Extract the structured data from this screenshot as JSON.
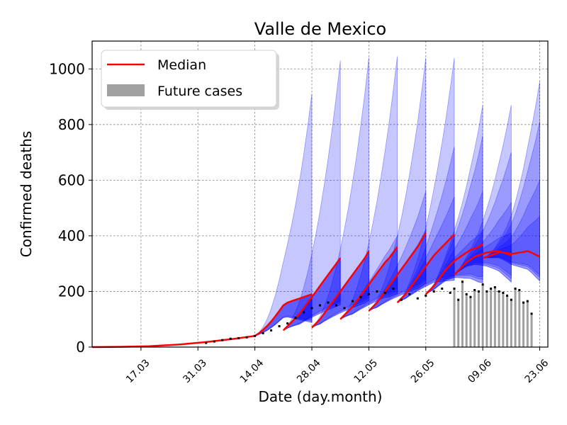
{
  "chart_data": {
    "type": "line",
    "title": "Valle de Mexico",
    "xlabel": "Date (day.month)",
    "ylabel": "Confirmed deaths",
    "ylim": [
      0,
      1100
    ],
    "xlim": [
      "2020-03-05",
      "2020-06-25"
    ],
    "grid": true,
    "legend_position": "top-left",
    "x_tick_labels": [
      "17.03",
      "31.03",
      "14.04",
      "28.04",
      "12.05",
      "26.05",
      "09.06",
      "23.06"
    ],
    "x_ticks": [
      "2020-03-17",
      "2020-03-31",
      "2020-04-14",
      "2020-04-28",
      "2020-05-12",
      "2020-05-26",
      "2020-06-09",
      "2020-06-23"
    ],
    "y_ticks": [
      0,
      200,
      400,
      600,
      800,
      1000
    ],
    "legend": [
      "Median",
      "Future cases"
    ],
    "colors": {
      "median": "#ff0000",
      "band": "#0000ff",
      "future_bars": "#a0a0a0",
      "observed": "#000000"
    },
    "observed_daily_deaths": {
      "dates": [
        "2020-04-02",
        "2020-04-04",
        "2020-04-06",
        "2020-04-08",
        "2020-04-10",
        "2020-04-12",
        "2020-04-14",
        "2020-04-16",
        "2020-04-18",
        "2020-04-20",
        "2020-04-22",
        "2020-04-24",
        "2020-04-26",
        "2020-04-28",
        "2020-04-30",
        "2020-05-02",
        "2020-05-04",
        "2020-05-06",
        "2020-05-08",
        "2020-05-10",
        "2020-05-12",
        "2020-05-14",
        "2020-05-16",
        "2020-05-18",
        "2020-05-20",
        "2020-05-22",
        "2020-05-24",
        "2020-05-26",
        "2020-05-28",
        "2020-05-30",
        "2020-06-01"
      ],
      "values": [
        15,
        20,
        25,
        30,
        32,
        35,
        40,
        50,
        60,
        75,
        85,
        105,
        125,
        140,
        150,
        160,
        150,
        140,
        165,
        180,
        190,
        200,
        195,
        210,
        170,
        190,
        175,
        185,
        200,
        210,
        195
      ]
    },
    "future_cases": {
      "dates": [
        "2020-06-02",
        "2020-06-03",
        "2020-06-04",
        "2020-06-05",
        "2020-06-06",
        "2020-06-07",
        "2020-06-08",
        "2020-06-09",
        "2020-06-10",
        "2020-06-11",
        "2020-06-12",
        "2020-06-13",
        "2020-06-14",
        "2020-06-15",
        "2020-06-16",
        "2020-06-17",
        "2020-06-18",
        "2020-06-19",
        "2020-06-20",
        "2020-06-21"
      ],
      "values": [
        210,
        170,
        235,
        190,
        180,
        205,
        200,
        225,
        200,
        210,
        215,
        200,
        195,
        185,
        170,
        210,
        205,
        160,
        165,
        120
      ]
    },
    "forecasts": [
      {
        "start": "2020-04-14",
        "end": "2020-04-28",
        "median": [
          40,
          50,
          62,
          76,
          92,
          110,
          130,
          150,
          160,
          165,
          170,
          175,
          180,
          185,
          190
        ],
        "bands": [
          [
            20,
            160
          ],
          [
            28,
            120
          ],
          [
            34,
            95
          ]
        ],
        "outer_end_max": 910
      },
      {
        "start": "2020-04-21",
        "end": "2020-05-05",
        "median": [
          60,
          75,
          90,
          105,
          120,
          140,
          160,
          180,
          200,
          220,
          240,
          260,
          280,
          300,
          320
        ],
        "bands": [
          [
            40,
            240
          ],
          [
            55,
            180
          ],
          [
            65,
            150
          ]
        ],
        "outer_end_max": 1030
      },
      {
        "start": "2020-04-28",
        "end": "2020-05-12",
        "median": [
          70,
          85,
          100,
          120,
          140,
          160,
          180,
          200,
          220,
          240,
          260,
          280,
          300,
          320,
          345
        ],
        "bands": [
          [
            50,
            320
          ],
          [
            65,
            240
          ],
          [
            80,
            190
          ]
        ],
        "outer_end_max": 1040
      },
      {
        "start": "2020-05-05",
        "end": "2020-05-19",
        "median": [
          100,
          115,
          130,
          145,
          165,
          185,
          205,
          225,
          245,
          265,
          285,
          305,
          320,
          340,
          360
        ],
        "bands": [
          [
            80,
            400
          ],
          [
            95,
            300
          ],
          [
            110,
            240
          ]
        ],
        "outer_end_max": 1045
      },
      {
        "start": "2020-05-12",
        "end": "2020-05-26",
        "median": [
          130,
          145,
          160,
          180,
          200,
          220,
          240,
          260,
          280,
          300,
          320,
          340,
          360,
          385,
          410
        ],
        "bands": [
          [
            110,
            560
          ],
          [
            125,
            420
          ],
          [
            140,
            320
          ]
        ],
        "outer_end_max": 1040
      },
      {
        "start": "2020-05-19",
        "end": "2020-06-02",
        "median": [
          160,
          175,
          190,
          210,
          230,
          250,
          270,
          290,
          310,
          330,
          345,
          360,
          375,
          390,
          405
        ],
        "bands": [
          [
            130,
            720
          ],
          [
            145,
            540
          ],
          [
            160,
            400
          ]
        ],
        "outer_end_max": 1040
      },
      {
        "start": "2020-05-26",
        "end": "2020-06-09",
        "median": [
          190,
          205,
          220,
          240,
          260,
          280,
          295,
          310,
          320,
          330,
          340,
          350,
          355,
          360,
          370
        ],
        "bands": [
          [
            140,
            760
          ],
          [
            160,
            560
          ],
          [
            175,
            420
          ]
        ],
        "outer_end_max": 870
      },
      {
        "start": "2020-06-02",
        "end": "2020-06-16",
        "median": [
          260,
          275,
          290,
          305,
          315,
          325,
          330,
          335,
          340,
          342,
          344,
          345,
          340,
          335,
          330
        ],
        "bands": [
          [
            170,
            700
          ],
          [
            190,
            520
          ],
          [
            210,
            410
          ]
        ],
        "outer_end_max": 870
      },
      {
        "start": "2020-06-09",
        "end": "2020-06-23",
        "median": [
          320,
          325,
          330,
          335,
          340,
          340,
          338,
          335,
          337,
          340,
          342,
          345,
          340,
          332,
          325
        ],
        "bands": [
          [
            180,
            810
          ],
          [
            200,
            600
          ],
          [
            215,
            470
          ]
        ],
        "outer_end_max": 955
      }
    ],
    "early_median": {
      "dates": [
        "2020-03-05",
        "2020-03-12",
        "2020-03-19",
        "2020-03-26",
        "2020-04-02",
        "2020-04-09",
        "2020-04-14"
      ],
      "values": [
        0,
        1,
        3,
        9,
        18,
        30,
        40
      ]
    }
  }
}
